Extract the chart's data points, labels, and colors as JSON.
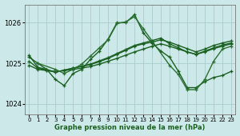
{
  "background_color": "#cce8e8",
  "grid_color": "#aacccc",
  "line_color": "#1a6020",
  "xlabel": "Graphe pression niveau de la mer (hPa)",
  "xlim": [
    -0.5,
    23.5
  ],
  "ylim": [
    1023.75,
    1026.45
  ],
  "yticks": [
    1024,
    1025,
    1026
  ],
  "xticks": [
    0,
    1,
    2,
    3,
    4,
    5,
    6,
    7,
    8,
    9,
    10,
    11,
    12,
    13,
    14,
    15,
    16,
    17,
    18,
    19,
    20,
    21,
    22,
    23
  ],
  "series": [
    {
      "x": [
        0,
        1,
        2,
        3,
        4,
        5,
        6,
        7,
        8,
        9,
        10,
        11,
        12,
        13,
        14,
        15,
        16,
        17,
        18,
        19,
        20,
        21,
        22,
        23
      ],
      "y": [
        1025.2,
        1024.9,
        1024.85,
        1024.6,
        1024.45,
        1024.75,
        1024.85,
        1025.1,
        1025.3,
        1025.6,
        1026.0,
        1026.0,
        1026.2,
        1025.75,
        1025.5,
        1025.3,
        1025.15,
        1024.8,
        1024.4,
        1024.4,
        1024.55,
        1024.65,
        1024.7,
        1024.8
      ],
      "color": "#1a6020",
      "lw": 1.0
    },
    {
      "x": [
        0,
        1,
        2,
        3,
        4,
        5,
        6,
        7,
        8,
        9,
        10,
        11,
        12,
        13,
        14,
        15,
        16,
        17,
        18,
        19,
        20,
        21,
        22,
        23
      ],
      "y": [
        1024.95,
        1024.85,
        1024.82,
        1024.8,
        1024.82,
        1024.85,
        1024.88,
        1024.92,
        1024.98,
        1025.05,
        1025.12,
        1025.2,
        1025.28,
        1025.35,
        1025.42,
        1025.48,
        1025.42,
        1025.35,
        1025.28,
        1025.22,
        1025.3,
        1025.38,
        1025.45,
        1025.5
      ],
      "color": "#1a6020",
      "lw": 1.0
    },
    {
      "x": [
        0,
        1,
        2,
        3,
        4,
        5,
        6,
        7,
        8,
        9,
        10,
        11,
        12,
        13,
        14,
        15,
        16,
        17,
        18,
        19,
        20,
        21,
        22,
        23
      ],
      "y": [
        1025.05,
        1024.88,
        1024.83,
        1024.78,
        1024.83,
        1024.88,
        1024.92,
        1024.97,
        1025.04,
        1025.12,
        1025.22,
        1025.32,
        1025.42,
        1025.48,
        1025.52,
        1025.58,
        1025.52,
        1025.44,
        1025.36,
        1025.28,
        1025.35,
        1025.44,
        1025.5,
        1025.55
      ],
      "color": "#1a6020",
      "lw": 1.0
    },
    {
      "x": [
        0,
        1,
        2,
        3,
        4,
        5,
        6,
        7,
        8,
        9,
        10,
        11,
        12,
        13,
        14,
        15,
        16,
        17,
        18,
        19,
        20,
        21,
        22,
        23
      ],
      "y": [
        1025.15,
        1025.0,
        1024.85,
        1024.78,
        1024.83,
        1024.88,
        1024.93,
        1024.98,
        1025.06,
        1025.14,
        1025.24,
        1025.34,
        1025.44,
        1025.5,
        1025.56,
        1025.62,
        1025.48,
        1025.38,
        1025.28,
        1025.22,
        1025.28,
        1025.36,
        1025.42,
        1025.48
      ],
      "color": "#1a6020",
      "lw": 1.0
    },
    {
      "x": [
        1,
        3,
        4,
        5,
        6,
        7,
        8,
        9,
        10,
        11,
        12,
        13,
        16,
        17,
        18,
        19,
        20,
        21,
        22,
        23
      ],
      "y": [
        1025.0,
        1024.85,
        1024.75,
        1024.85,
        1024.98,
        1025.18,
        1025.38,
        1025.58,
        1025.98,
        1026.02,
        1026.15,
        1025.85,
        1024.95,
        1024.72,
        1024.35,
        1024.35,
        1024.6,
        1025.05,
        1025.35,
        1025.42
      ],
      "color": "#2a7030",
      "lw": 1.0
    }
  ]
}
